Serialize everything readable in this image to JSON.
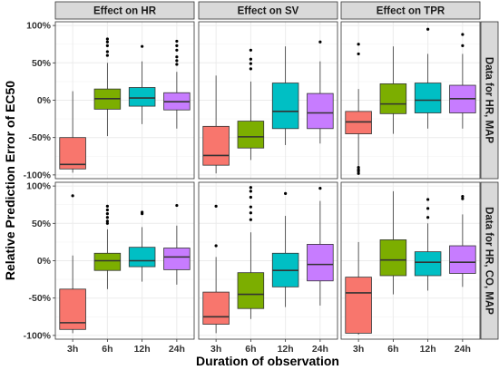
{
  "chart_data": {
    "type": "boxplot",
    "xlabel": "Duration of observation",
    "ylabel": "Relative Prediction Error of EC50",
    "categories": [
      "3h",
      "6h",
      "12h",
      "24h"
    ],
    "category_colors": [
      "#f8766d",
      "#7cae00",
      "#00bfc4",
      "#c77cff"
    ],
    "columns": [
      "Effect on HR",
      "Effect on SV",
      "Effect on TPR"
    ],
    "rows": [
      "Data for HR, MAP",
      "Data for HR, CO, MAP"
    ],
    "yticks": [
      -100,
      -50,
      0,
      50,
      100
    ],
    "ytick_labels": [
      "-100%",
      "-50%",
      "0%",
      "50%",
      "100%"
    ],
    "ylim": [
      -105,
      105
    ],
    "grid": true,
    "panels": [
      {
        "row": "Data for HR, MAP",
        "column": "Effect on HR",
        "boxes": [
          {
            "category": "3h",
            "whisker_low": -97,
            "q1": -92,
            "median": -86,
            "q3": -50,
            "whisker_high": 12,
            "outliers": []
          },
          {
            "category": "6h",
            "whisker_low": -48,
            "q1": -12,
            "median": 2,
            "q3": 15,
            "whisker_high": 50,
            "outliers": [
              60,
              65,
              73,
              78,
              82
            ]
          },
          {
            "category": "12h",
            "whisker_low": -32,
            "q1": -8,
            "median": 3,
            "q3": 17,
            "whisker_high": 52,
            "outliers": [
              72
            ]
          },
          {
            "category": "24h",
            "whisker_low": -38,
            "q1": -13,
            "median": -2,
            "q3": 10,
            "whisker_high": 38,
            "outliers": [
              48,
              53,
              58,
              67,
              73,
              79
            ]
          }
        ]
      },
      {
        "row": "Data for HR, MAP",
        "column": "Effect on SV",
        "boxes": [
          {
            "category": "3h",
            "whisker_low": -98,
            "q1": -87,
            "median": -74,
            "q3": -35,
            "whisker_high": 33,
            "outliers": []
          },
          {
            "category": "6h",
            "whisker_low": -80,
            "q1": -64,
            "median": -49,
            "q3": -28,
            "whisker_high": 25,
            "outliers": [
              42,
              49,
              55,
              67
            ]
          },
          {
            "category": "12h",
            "whisker_low": -60,
            "q1": -38,
            "median": -15,
            "q3": 23,
            "whisker_high": 72,
            "outliers": []
          },
          {
            "category": "24h",
            "whisker_low": -58,
            "q1": -38,
            "median": -17,
            "q3": 9,
            "whisker_high": 52,
            "outliers": [
              78
            ]
          }
        ]
      },
      {
        "row": "Data for HR, MAP",
        "column": "Effect on TPR",
        "boxes": [
          {
            "category": "3h",
            "whisker_low": -88,
            "q1": -45,
            "median": -29,
            "q3": -15,
            "whisker_high": 15,
            "outliers": [
              -90,
              -93,
              -95,
              -98,
              62,
              75
            ]
          },
          {
            "category": "6h",
            "whisker_low": -45,
            "q1": -18,
            "median": -5,
            "q3": 22,
            "whisker_high": 72,
            "outliers": []
          },
          {
            "category": "12h",
            "whisker_low": -38,
            "q1": -17,
            "median": 0,
            "q3": 23,
            "whisker_high": 62,
            "outliers": [
              95
            ]
          },
          {
            "category": "24h",
            "whisker_low": -38,
            "q1": -17,
            "median": 2,
            "q3": 20,
            "whisker_high": 62,
            "outliers": [
              73,
              88
            ]
          }
        ]
      },
      {
        "row": "Data for HR, CO, MAP",
        "column": "Effect on HR",
        "boxes": [
          {
            "category": "3h",
            "whisker_low": -97,
            "q1": -92,
            "median": -83,
            "q3": -38,
            "whisker_high": 7,
            "outliers": [
              87
            ]
          },
          {
            "category": "6h",
            "whisker_low": -38,
            "q1": -13,
            "median": 0,
            "q3": 10,
            "whisker_high": 42,
            "outliers": [
              50,
              53,
              58,
              63,
              68,
              73
            ]
          },
          {
            "category": "12h",
            "whisker_low": -28,
            "q1": -8,
            "median": 0,
            "q3": 18,
            "whisker_high": 45,
            "outliers": [
              63,
              65
            ]
          },
          {
            "category": "24h",
            "whisker_low": -32,
            "q1": -12,
            "median": 5,
            "q3": 17,
            "whisker_high": 47,
            "outliers": [
              74
            ]
          }
        ]
      },
      {
        "row": "Data for HR, CO, MAP",
        "column": "Effect on SV",
        "boxes": [
          {
            "category": "3h",
            "whisker_low": -97,
            "q1": -85,
            "median": -75,
            "q3": -42,
            "whisker_high": 5,
            "outliers": [
              20,
              73
            ]
          },
          {
            "category": "6h",
            "whisker_low": -78,
            "q1": -64,
            "median": -45,
            "q3": -16,
            "whisker_high": 38,
            "outliers": [
              55,
              64,
              72,
              85,
              93,
              98
            ]
          },
          {
            "category": "12h",
            "whisker_low": -62,
            "q1": -35,
            "median": -13,
            "q3": 10,
            "whisker_high": 60,
            "outliers": [
              90
            ]
          },
          {
            "category": "24h",
            "whisker_low": -60,
            "q1": -27,
            "median": -5,
            "q3": 22,
            "whisker_high": 80,
            "outliers": [
              97
            ]
          }
        ]
      },
      {
        "row": "Data for HR, CO, MAP",
        "column": "Effect on TPR",
        "boxes": [
          {
            "category": "3h",
            "whisker_low": -99,
            "q1": -97,
            "median": -43,
            "q3": -22,
            "whisker_high": 25,
            "outliers": []
          },
          {
            "category": "6h",
            "whisker_low": -45,
            "q1": -20,
            "median": 1,
            "q3": 28,
            "whisker_high": 93,
            "outliers": []
          },
          {
            "category": "12h",
            "whisker_low": -40,
            "q1": -20,
            "median": -2,
            "q3": 12,
            "whisker_high": 50,
            "outliers": [
              58,
              70,
              82
            ]
          },
          {
            "category": "24h",
            "whisker_low": -35,
            "q1": -17,
            "median": -2,
            "q3": 20,
            "whisker_high": 62,
            "outliers": [
              83,
              86
            ]
          }
        ]
      }
    ]
  }
}
